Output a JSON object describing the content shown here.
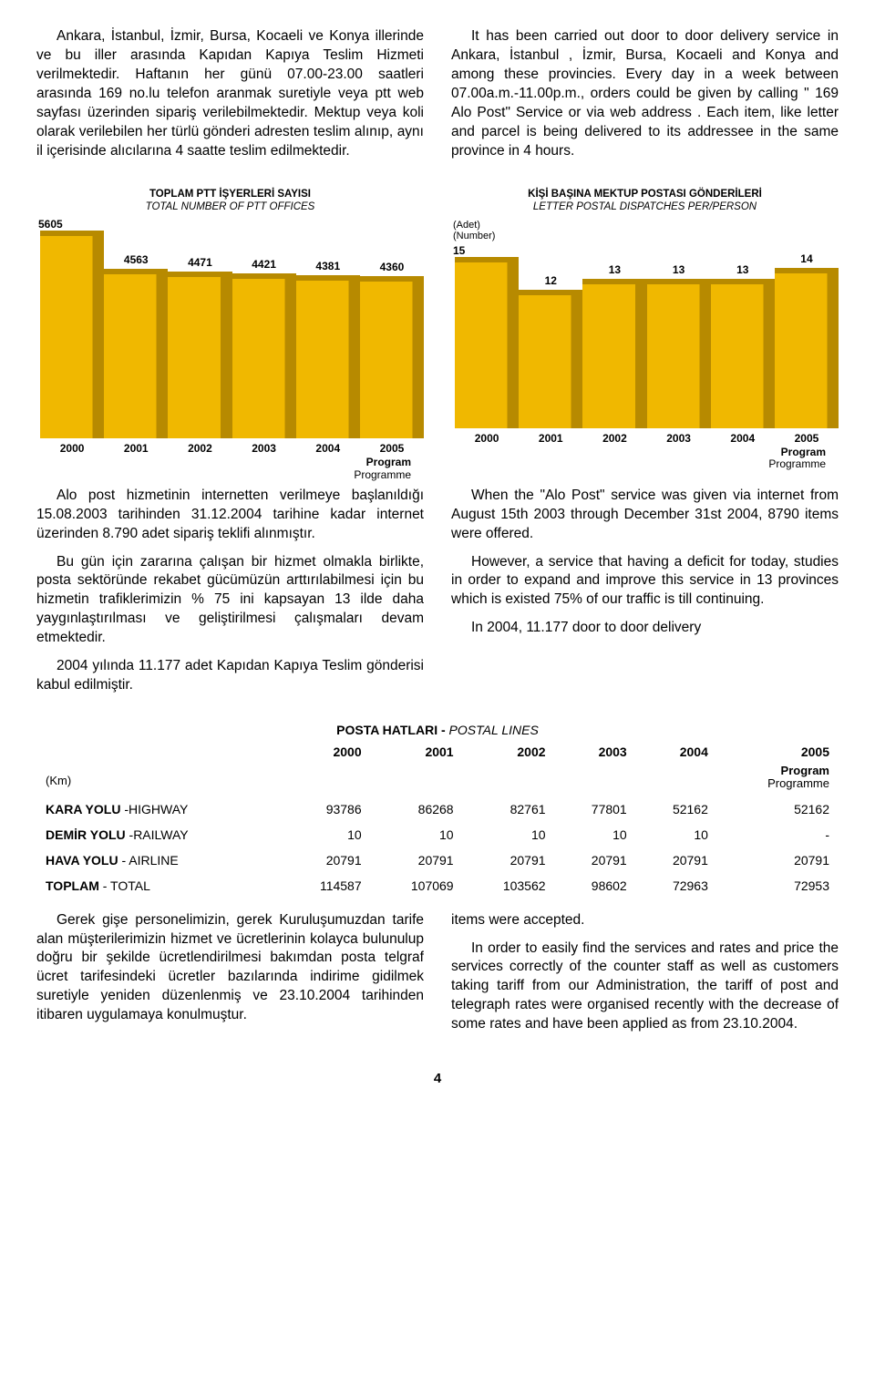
{
  "top_left_para": "Ankara, İstanbul, İzmir, Bursa, Kocaeli ve Konya illerinde ve bu iller arasında Kapıdan Kapıya Teslim Hizmeti verilmektedir. Haftanın her günü 07.00-23.00 saatleri arasında 169 no.lu telefon aranmak suretiyle veya ptt web sayfası üzerinden sipariş verilebilmektedir. Mektup veya koli olarak verilebilen her türlü gönderi adresten teslim alınıp, aynı il içerisinde alıcılarına 4 saatte teslim edilmektedir.",
  "top_right_para": "It has been carried out door to door delivery service in Ankara, İstanbul , İzmir, Bursa, Kocaeli and Konya and among these provincies. Every day in a week between 07.00a.m.-11.00p.m., orders could be given by calling \" 169 Alo Post\" Service or via web address . Each item, like letter and parcel is being delivered to its addressee in the same province in 4 hours.",
  "chart_left": {
    "title": "TOPLAM PTT İŞYERLERİ SAYISI",
    "subtitle": "TOTAL NUMBER OF PTT OFFICES",
    "ymax_label": "5605",
    "ymax_value": 5605,
    "bar_color": "#f0b800",
    "bar_edge_color": "#b78a00",
    "categories": [
      "2000",
      "2001",
      "2002",
      "2003",
      "2004",
      "2005"
    ],
    "values": [
      5605,
      4563,
      4471,
      4421,
      4381,
      4360
    ],
    "value_labels": [
      "",
      "4563",
      "4471",
      "4421",
      "4381",
      "4360"
    ],
    "program_label": "Program",
    "programme_label": "Programme"
  },
  "chart_right": {
    "title": "KİŞİ BAŞINA MEKTUP POSTASI GÖNDERİLERİ",
    "subtitle": "LETTER POSTAL DISPATCHES PER/PERSON",
    "unit_tr": "(Adet)",
    "unit_en": "(Number)",
    "ymax_label": "15",
    "ymax_value": 15,
    "bar_color": "#f0b800",
    "bar_edge_color": "#b78a00",
    "categories": [
      "2000",
      "2001",
      "2002",
      "2003",
      "2004",
      "2005"
    ],
    "values": [
      15,
      12,
      13,
      13,
      13,
      14
    ],
    "value_labels": [
      "",
      "12",
      "13",
      "13",
      "13",
      "14"
    ],
    "program_label": "Program",
    "programme_label": "Programme"
  },
  "mid_left_paras": [
    "Alo post hizmetinin internetten verilmeye başlanıldığı 15.08.2003 tarihinden 31.12.2004 tarihine kadar internet üzerinden 8.790 adet sipariş teklifi alınmıştır.",
    "Bu gün için zararına çalışan bir hizmet olmakla birlikte, posta sektöründe rekabet gücümüzün arttırılabilmesi için bu hizmetin trafiklerimizin % 75 ini kapsayan 13 ilde daha yaygınlaştırılması ve geliştirilmesi çalışmaları devam etmektedir.",
    "2004 yılında 11.177 adet Kapıdan Kapıya Teslim gönderisi kabul edilmiştir."
  ],
  "mid_right_paras": [
    "When the \"Alo Post\" service was given via internet from August 15th 2003 through December 31st 2004, 8790 items were offered.",
    "However, a service that having a deficit for today, studies in order to expand and improve this service in 13 provinces which is existed 75% of our traffic is till continuing.",
    "In 2004, 11.177 door to door delivery"
  ],
  "table": {
    "title_tr": "POSTA HATLARI",
    "title_sep": " - ",
    "title_en": "POSTAL LINES",
    "years": [
      "2000",
      "2001",
      "2002",
      "2003",
      "2004",
      "2005"
    ],
    "unit_label": "(Km)",
    "program_label": "Program",
    "programme_label": "Programme",
    "rows": [
      {
        "label_tr": "KARA YOLU",
        "label_en": " -HIGHWAY",
        "cells": [
          "93786",
          "86268",
          "82761",
          "77801",
          "52162",
          "52162"
        ]
      },
      {
        "label_tr": "DEMİR YOLU",
        "label_en": " -RAILWAY",
        "cells": [
          "10",
          "10",
          "10",
          "10",
          "10",
          "-"
        ]
      },
      {
        "label_tr": "HAVA YOLU",
        "label_en": " - AIRLINE",
        "cells": [
          "20791",
          "20791",
          "20791",
          "20791",
          "20791",
          "20791"
        ]
      },
      {
        "label_tr": "TOPLAM",
        "label_en": " - TOTAL",
        "cells": [
          "114587",
          "107069",
          "103562",
          "98602",
          "72963",
          "72953"
        ]
      }
    ]
  },
  "bottom_left_para": "Gerek gişe personelimizin, gerek Kuruluşumuzdan tarife alan müşterilerimizin hizmet ve ücretlerinin kolayca bulunulup doğru bir şekilde ücretlendirilmesi bakımdan posta telgraf ücret tarifesindeki ücretler bazılarında indirime gidilmek suretiyle yeniden düzenlenmiş ve 23.10.2004 tarihinden itibaren uygulamaya konulmuştur.",
  "bottom_right_para1": "items were accepted.",
  "bottom_right_para2": "In order to easily find the services and rates and price the services correctly of the counter staff as well as customers taking tariff from our Administration, the tariff of post and telegraph rates were organised recently with the decrease of some rates and have been applied as from 23.10.2004.",
  "page_number": "4"
}
